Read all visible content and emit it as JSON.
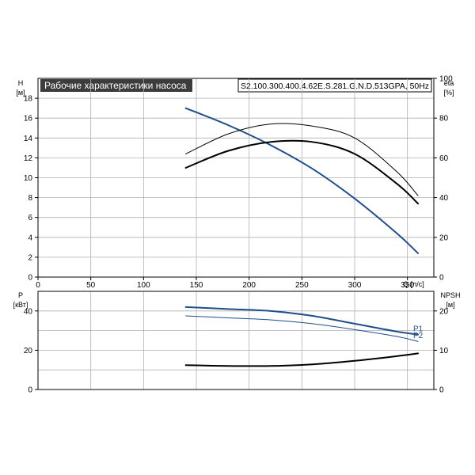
{
  "title": "Рабочие характеристики насоса",
  "model": "S2.100.300.400.4.62E.S.281.G.N.D.513GPA, 50Hz",
  "colors": {
    "blue": "#1f4e8c",
    "black": "#000000",
    "grid": "#b0b0b0",
    "title_bg": "#3c3c3c"
  },
  "chart_data": [
    {
      "type": "line",
      "name": "upper",
      "title": "Рабочие характеристики насоса",
      "xlabel": "Q [л/с]",
      "ylabel": "H [м]",
      "ylabel_symbol": "H",
      "ylabel_unit": "[м]",
      "y2label": "eta [%]",
      "y2label_symbol": "eta",
      "y2label_unit": "[%]",
      "xlim": [
        0,
        375
      ],
      "ylim": [
        0,
        20
      ],
      "y2lim": [
        0,
        100
      ],
      "x_ticks": [
        0,
        50,
        100,
        150,
        200,
        250,
        300,
        350
      ],
      "y_ticks": [
        0,
        2,
        4,
        6,
        8,
        10,
        12,
        14,
        16,
        18
      ],
      "y2_ticks": [
        0,
        20,
        40,
        60,
        80,
        100
      ],
      "grid": true,
      "series": [
        {
          "role": "head",
          "axis": "left",
          "color": "#1f4e8c",
          "width": 2,
          "x": [
            140,
            180,
            220,
            260,
            300,
            340,
            360
          ],
          "y": [
            17.0,
            15.3,
            13.3,
            10.9,
            7.9,
            4.4,
            2.4
          ]
        },
        {
          "role": "efficiency",
          "axis": "right",
          "color": "#000000",
          "width": 2,
          "x": [
            140,
            180,
            220,
            260,
            300,
            340,
            360
          ],
          "y": [
            55,
            63.5,
            68,
            68,
            62,
            47,
            37
          ]
        },
        {
          "role": "efficiency-2",
          "axis": "right",
          "color": "#000000",
          "width": 1,
          "x": [
            140,
            180,
            220,
            260,
            300,
            340,
            360
          ],
          "y": [
            62,
            72,
            77,
            76,
            70,
            53,
            41
          ]
        }
      ]
    },
    {
      "type": "line",
      "name": "lower",
      "ylabel": "P [кВт]",
      "ylabel_symbol": "P",
      "ylabel_unit": "[кВт]",
      "y2label": "NPSH [м]",
      "y2label_symbol": "NPSH",
      "y2label_unit": "[м]",
      "xlim": [
        0,
        375
      ],
      "ylim": [
        0,
        50
      ],
      "y2lim": [
        0,
        25
      ],
      "y_ticks": [
        0,
        20,
        40
      ],
      "y2_ticks": [
        0,
        10,
        20
      ],
      "grid": true,
      "series": [
        {
          "name": "P1",
          "axis": "left",
          "color": "#1f4e8c",
          "width": 2,
          "x": [
            140,
            180,
            220,
            260,
            300,
            340,
            360
          ],
          "y": [
            42.0,
            41.0,
            40.0,
            37.5,
            33.5,
            29.5,
            28.0
          ]
        },
        {
          "name": "P2",
          "axis": "left",
          "color": "#1f4e8c",
          "width": 1,
          "x": [
            140,
            180,
            220,
            260,
            300,
            340,
            360
          ],
          "y": [
            37.5,
            36.5,
            35.5,
            33.5,
            30.5,
            27.0,
            24.5
          ]
        },
        {
          "role": "npsh",
          "axis": "right",
          "color": "#000000",
          "width": 2,
          "x": [
            140,
            180,
            220,
            260,
            300,
            340,
            360
          ],
          "y": [
            6.2,
            6.0,
            6.0,
            6.4,
            7.3,
            8.5,
            9.2
          ]
        }
      ]
    }
  ]
}
